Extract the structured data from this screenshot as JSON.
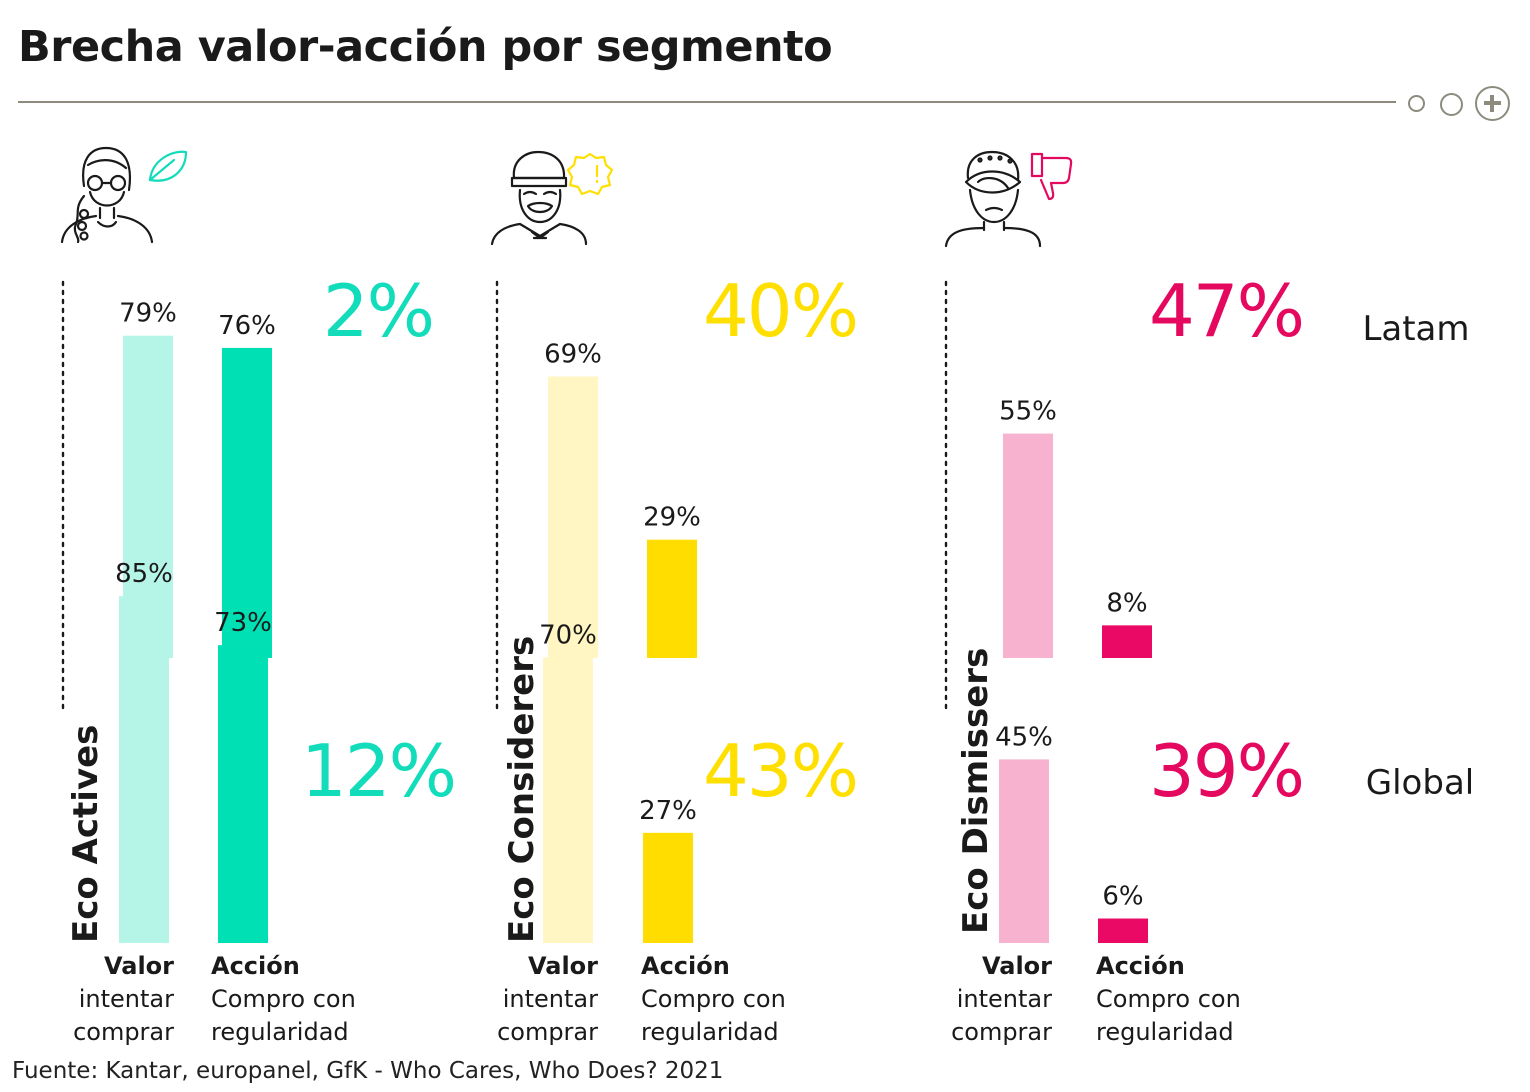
{
  "title": "Brecha valor-acción por segmento",
  "footer": "Fuente: Kantar, europanel, GfK - Who Cares, Who Does? 2021",
  "header_icons": [
    "circle-icon",
    "circle-icon",
    "plus-circle-icon"
  ],
  "chart_data": {
    "type": "bar",
    "title": "Brecha valor-acción por segmento",
    "rows": [
      "Latam",
      "Global"
    ],
    "categories": [
      "Valor",
      "Acción"
    ],
    "category_labels": {
      "valor": {
        "name": "Valor",
        "line1": "intentar",
        "line2": "comprar"
      },
      "accion": {
        "name": "Acción",
        "line1": "Compro con",
        "line2": "regularidad"
      }
    },
    "segments": [
      {
        "name": "Eco Actives",
        "icon": "woman-leaf-icon",
        "light_color": "#b5f5e8",
        "dark_color": "#00e0b5",
        "gap_color": "#13dcbb",
        "latam": {
          "valor": 79,
          "accion": 76,
          "gap": "2%"
        },
        "global": {
          "valor": 85,
          "accion": 73,
          "gap": "12%"
        }
      },
      {
        "name": "Eco Considerers",
        "icon": "man-alert-icon",
        "light_color": "#fff6c4",
        "dark_color": "#ffdd00",
        "gap_color": "#ffdf00",
        "latam": {
          "valor": 69,
          "accion": 29,
          "gap": "40%"
        },
        "global": {
          "valor": 70,
          "accion": 27,
          "gap": "43%"
        }
      },
      {
        "name": "Eco Dismissers",
        "icon": "person-thumbs-down-icon",
        "light_color": "#f7b2d0",
        "dark_color": "#ea0a66",
        "gap_color": "#e4085f",
        "latam": {
          "valor": 55,
          "accion": 8,
          "gap": "47%"
        },
        "global": {
          "valor": 45,
          "accion": 6,
          "gap": "39%"
        }
      }
    ]
  }
}
